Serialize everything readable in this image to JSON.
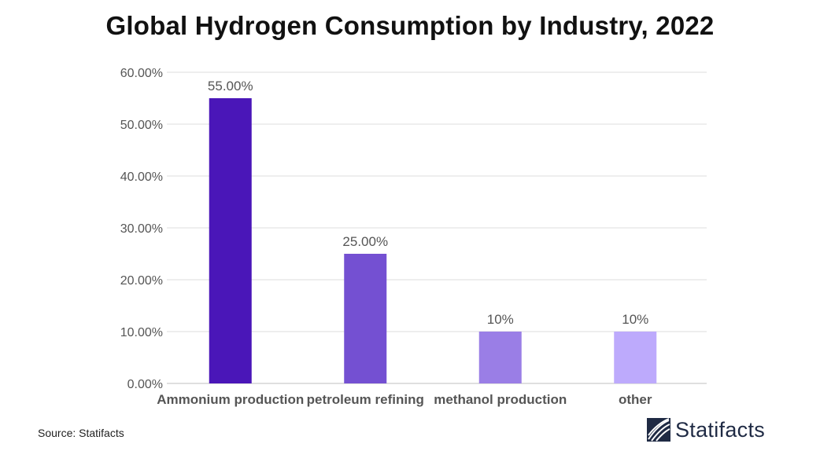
{
  "chart_data": {
    "type": "bar",
    "title": "Global Hydrogen Consumption by Industry, 2022",
    "categories": [
      "Ammonium production",
      "petroleum refining",
      "methanol production",
      "other"
    ],
    "values": [
      55,
      25,
      10,
      10
    ],
    "data_labels": [
      "55.00%",
      "25.00%",
      "10%",
      "10%"
    ],
    "bar_colors": [
      "#4a16b8",
      "#7450d2",
      "#9a7ee6",
      "#bdaafc"
    ],
    "ylim": [
      0,
      60
    ],
    "yticks": [
      0,
      10,
      20,
      30,
      40,
      50,
      60
    ],
    "ytick_labels": [
      "0.00%",
      "10.00%",
      "20.00%",
      "30.00%",
      "40.00%",
      "50.00%",
      "60.00%"
    ],
    "xlabel": "",
    "ylabel": "",
    "grid": true,
    "legend": "none"
  },
  "footer": {
    "source": "Source: Statifacts",
    "brand": "Statifacts",
    "brand_color": "#1f2a44"
  },
  "icons": {
    "logo": "statifacts-logo-icon"
  }
}
